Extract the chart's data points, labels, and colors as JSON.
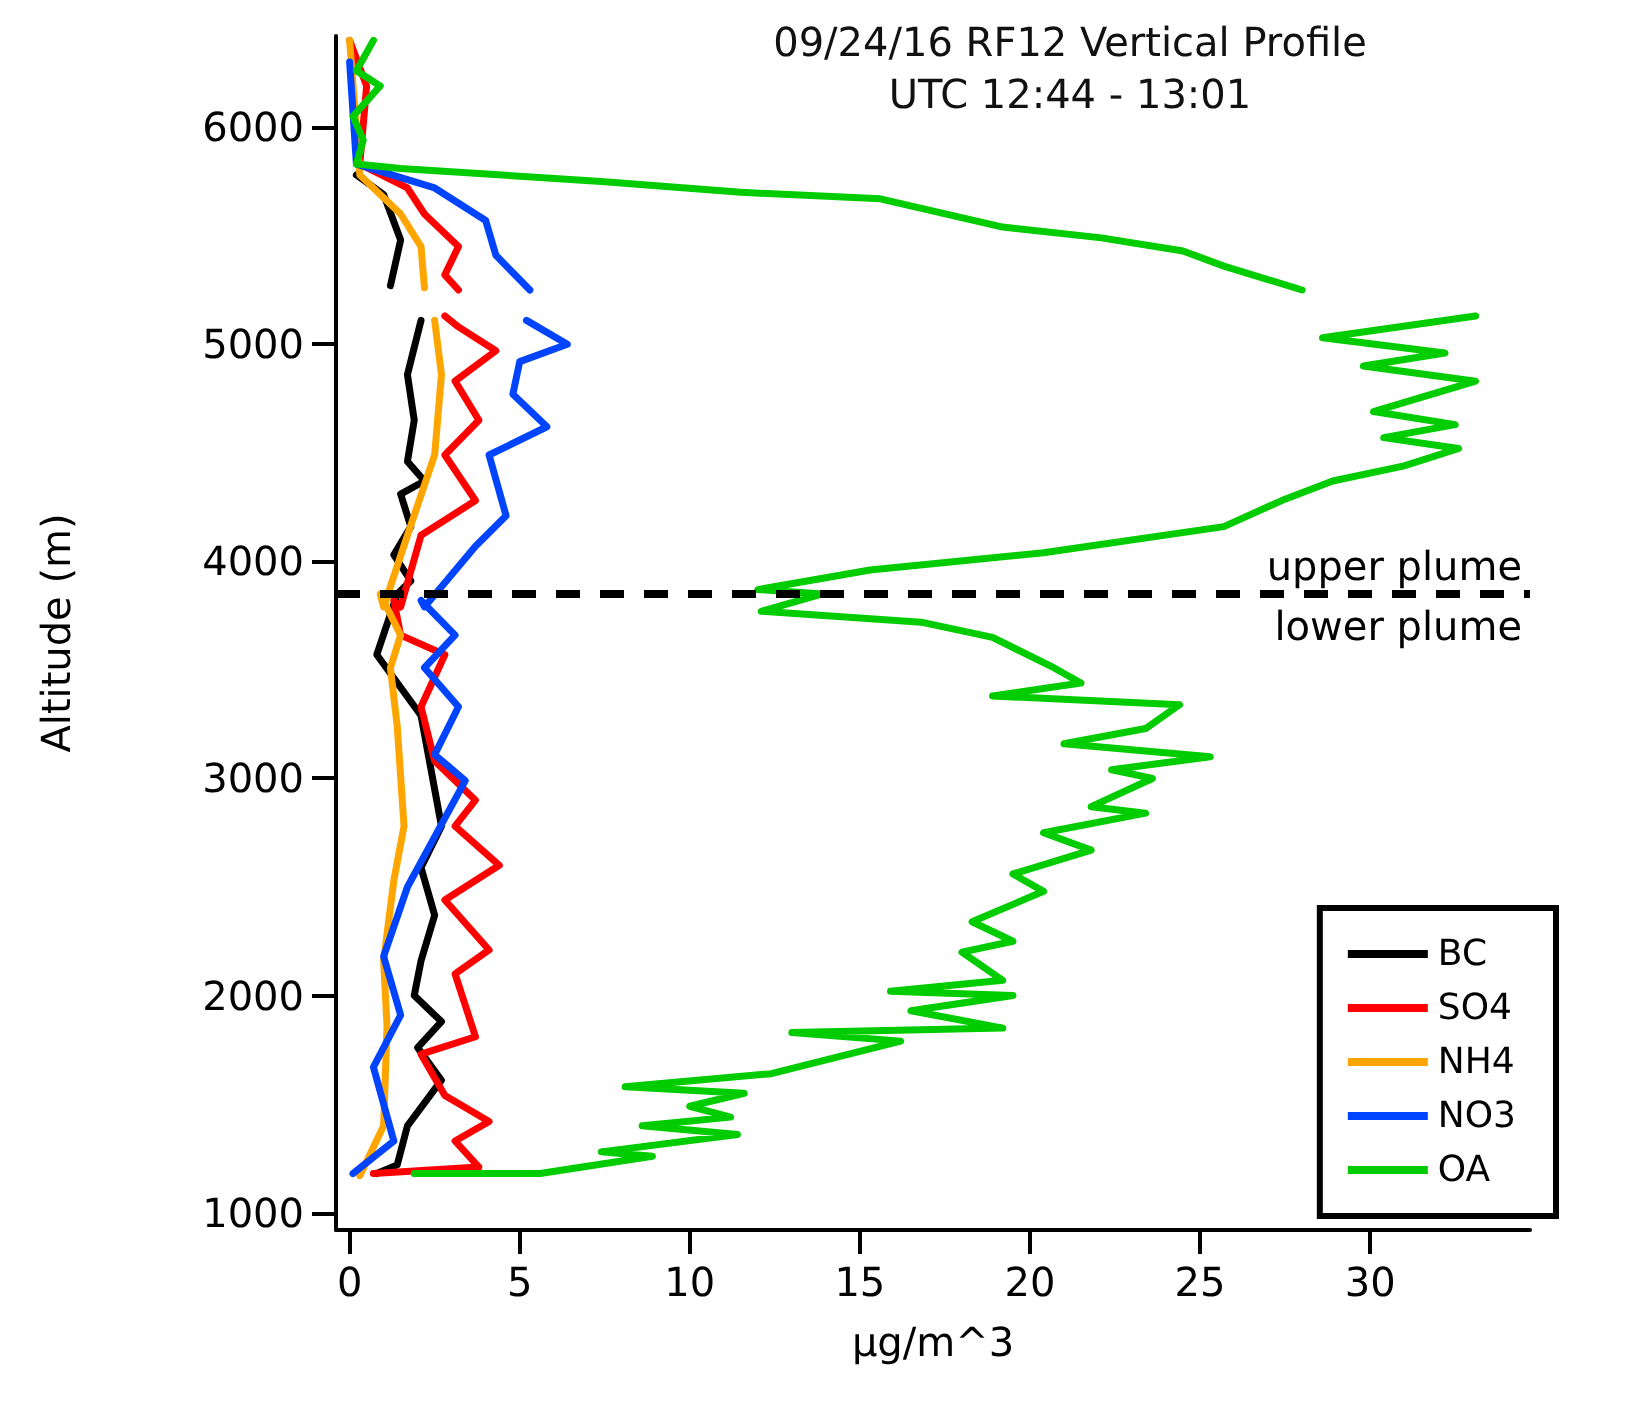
{
  "chart_data": {
    "type": "line",
    "title": "09/24/16 RF12 Vertical Profile",
    "subtitle": "UTC 12:44 - 13:01",
    "xlabel": "µg/m^3",
    "ylabel": "Altitude (m)",
    "xlim": [
      -0.4,
      34.7
    ],
    "xticks": [
      0,
      5,
      10,
      15,
      20,
      25,
      30
    ],
    "ylim": [
      920,
      6420
    ],
    "yticks": [
      1000,
      2000,
      3000,
      4000,
      5000,
      6000
    ],
    "grid": false,
    "legend": "bottom right",
    "marker": "none",
    "line_style": "solid",
    "ref_lines": [
      {
        "axis": "y",
        "value": 3850,
        "color": "#000000",
        "line_style": "dashed"
      }
    ],
    "annotations": [
      "upper plume",
      "lower plume"
    ],
    "series": [
      {
        "name": "BC",
        "color": "#000000",
        "x": [
          0.8,
          1.4,
          1.7,
          2.7,
          2.0,
          2.7,
          1.9,
          2.1,
          2.5,
          2.1,
          2.7,
          2.1,
          0.8,
          1.4,
          1.8,
          1.3,
          1.8,
          1.5,
          2.2,
          1.7,
          1.9,
          1.7,
          2.1,
          null,
          1.2,
          1.5,
          1.0,
          0.2,
          null
        ],
        "values": [
          1180,
          1220,
          1400,
          1610,
          1760,
          1880,
          2000,
          2160,
          2370,
          2590,
          2780,
          3290,
          3570,
          3850,
          3910,
          4030,
          4160,
          4310,
          4370,
          4460,
          4650,
          4860,
          5110,
          null,
          5270,
          5480,
          5690,
          5780,
          null
        ]
      },
      {
        "name": "SO4",
        "color": "#ff0000",
        "x": [
          0.7,
          3.8,
          3.1,
          4.1,
          2.8,
          2.1,
          3.7,
          3.1,
          4.1,
          2.8,
          4.4,
          3.1,
          3.7,
          2.5,
          2.1,
          2.8,
          1.5,
          1.3,
          1.5,
          2.1,
          3.7,
          2.8,
          3.8,
          3.1,
          4.3,
          3.2,
          2.8,
          null,
          3.2,
          2.8,
          3.2,
          2.2,
          1.7,
          0.3,
          0.5,
          0.0
        ],
        "values": [
          1180,
          1210,
          1330,
          1420,
          1540,
          1730,
          1810,
          2100,
          2210,
          2440,
          2600,
          2780,
          2900,
          3080,
          3330,
          3570,
          3660,
          3820,
          3790,
          4120,
          4280,
          4490,
          4650,
          4830,
          4970,
          5080,
          5130,
          null,
          5250,
          5320,
          5450,
          5600,
          5720,
          5830,
          6190,
          6400
        ]
      },
      {
        "name": "NH4",
        "color": "#ffa500",
        "x": [
          0.3,
          1.0,
          1.1,
          1.0,
          1.3,
          1.6,
          1.4,
          1.2,
          1.5,
          0.9,
          1.0,
          1.7,
          2.5,
          2.7,
          2.5,
          null,
          2.2,
          2.1,
          1.5,
          0.3,
          0.0
        ],
        "values": [
          1170,
          1400,
          1860,
          2160,
          2530,
          2780,
          3240,
          3510,
          3660,
          3850,
          3790,
          4120,
          4490,
          4860,
          5110,
          null,
          5260,
          5450,
          5600,
          5780,
          6400
        ]
      },
      {
        "name": "NO3",
        "color": "#0044ff",
        "x": [
          0.1,
          1.3,
          0.7,
          1.5,
          1.0,
          1.7,
          3.4,
          2.5,
          3.2,
          2.2,
          3.1,
          2.1,
          2.2,
          3.7,
          4.6,
          4.1,
          5.8,
          4.8,
          5.0,
          6.4,
          5.2,
          null,
          5.3,
          4.3,
          4.0,
          2.5,
          0.2,
          0.0
        ],
        "values": [
          1180,
          1330,
          1670,
          1910,
          2180,
          2500,
          2990,
          3110,
          3330,
          3510,
          3660,
          3820,
          3790,
          4070,
          4210,
          4490,
          4620,
          4770,
          4920,
          5000,
          5110,
          null,
          5250,
          5410,
          5570,
          5720,
          5830,
          6300
        ]
      },
      {
        "name": "OA",
        "color": "#00cc00",
        "x": [
          1.9,
          5.6,
          8.9,
          7.4,
          11.4,
          8.6,
          11.2,
          10.0,
          11.6,
          8.1,
          12.4,
          16.2,
          13.0,
          19.2,
          16.5,
          19.5,
          15.9,
          19.2,
          18.0,
          19.5,
          18.3,
          20.4,
          19.5,
          21.8,
          20.4,
          23.4,
          21.8,
          23.6,
          22.4,
          25.3,
          21.0,
          23.4,
          24.4,
          18.9,
          21.5,
          20.7,
          18.9,
          16.8,
          12.1,
          13.9,
          12.0,
          15.3,
          20.4,
          25.7,
          27.4,
          28.9,
          31.0,
          32.6,
          30.4,
          32.5,
          30.1,
          33.1,
          29.8,
          32.2,
          28.6,
          33.1,
          null,
          28.0,
          25.7,
          24.5,
          22.1,
          19.2,
          15.6,
          11.5,
          7.4,
          1.5,
          0.2,
          0.4,
          0.1,
          0.9,
          0.2,
          0.7
        ],
        "values": [
          1180,
          1180,
          1260,
          1280,
          1360,
          1400,
          1440,
          1490,
          1550,
          1580,
          1640,
          1790,
          1830,
          1850,
          1930,
          2000,
          2020,
          2070,
          2200,
          2250,
          2340,
          2480,
          2560,
          2670,
          2750,
          2840,
          2870,
          3000,
          3040,
          3100,
          3160,
          3230,
          3340,
          3380,
          3440,
          3510,
          3650,
          3720,
          3770,
          3850,
          3870,
          3960,
          4040,
          4160,
          4280,
          4370,
          4440,
          4520,
          4570,
          4630,
          4690,
          4830,
          4900,
          4960,
          5030,
          5130,
          null,
          5250,
          5360,
          5430,
          5490,
          5540,
          5670,
          5700,
          5750,
          5810,
          5830,
          5940,
          6050,
          6190,
          6260,
          6400
        ]
      }
    ]
  }
}
